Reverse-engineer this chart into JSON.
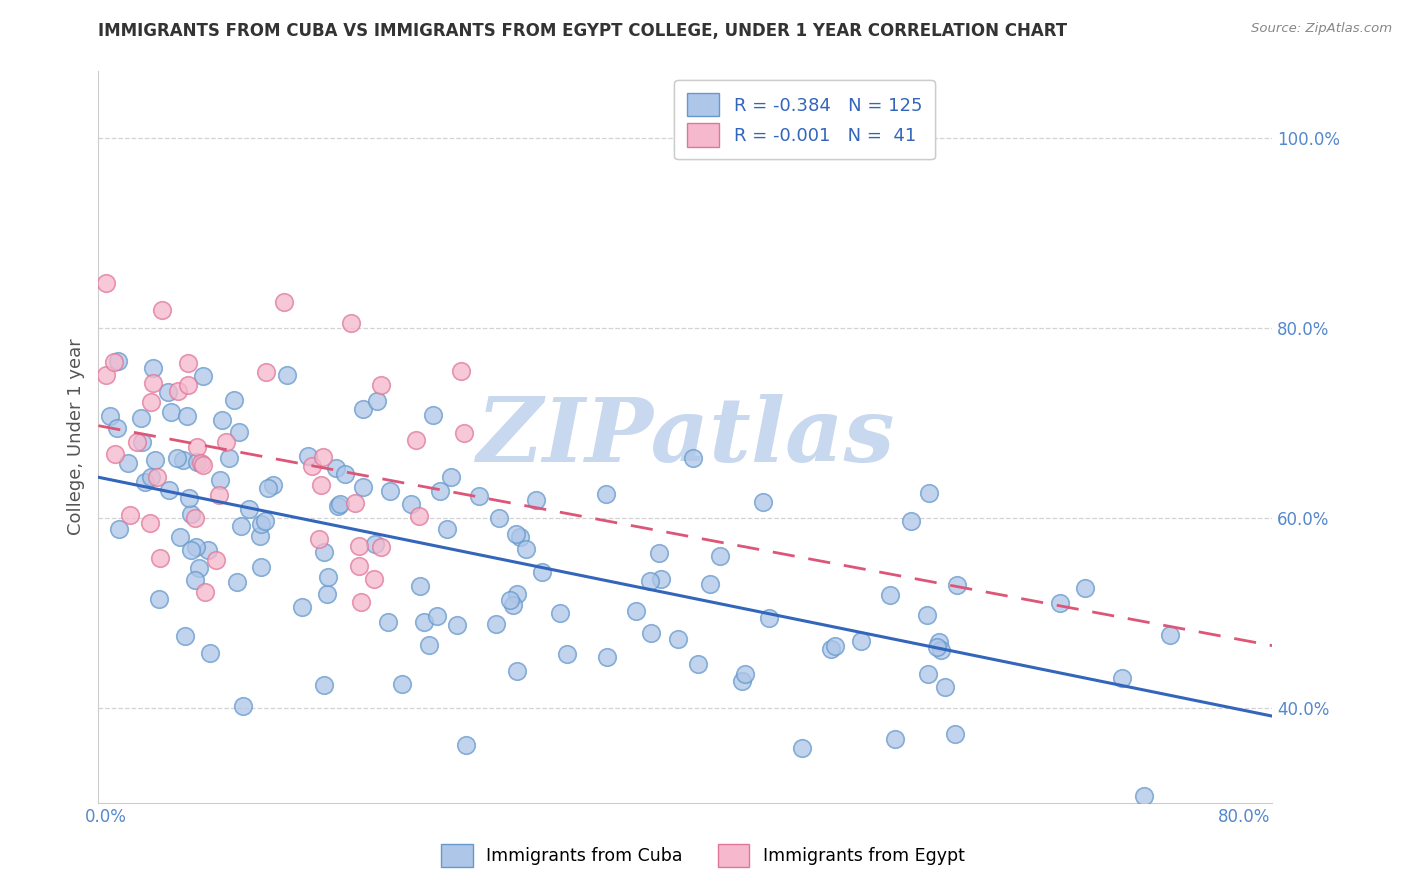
{
  "title": "IMMIGRANTS FROM CUBA VS IMMIGRANTS FROM EGYPT COLLEGE, UNDER 1 YEAR CORRELATION CHART",
  "source": "Source: ZipAtlas.com",
  "ylabel": "College, Under 1 year",
  "xlabel_cuba": "Immigrants from Cuba",
  "xlabel_egypt": "Immigrants from Egypt",
  "watermark": "ZIPatlas",
  "xlim": [
    -0.005,
    0.82
  ],
  "ylim": [
    0.3,
    1.07
  ],
  "xtick_positions": [
    0.0,
    0.1,
    0.2,
    0.3,
    0.4,
    0.5,
    0.6,
    0.7,
    0.8
  ],
  "xtick_labels": [
    "0.0%",
    "",
    "",
    "",
    "",
    "",
    "",
    "",
    "80.0%"
  ],
  "ytick_positions": [
    0.4,
    0.6,
    0.8,
    1.0
  ],
  "ytick_labels": [
    "40.0%",
    "60.0%",
    "80.0%",
    "100.0%"
  ],
  "cuba_R": -0.384,
  "cuba_N": 125,
  "egypt_R": -0.001,
  "egypt_N": 41,
  "cuba_face_color": "#aec6e8",
  "egypt_face_color": "#f5b8cc",
  "cuba_edge_color": "#6699cc",
  "egypt_edge_color": "#e07799",
  "cuba_line_color": "#3366bb",
  "egypt_line_color": "#dd5577",
  "grid_color": "#cccccc",
  "bg_color": "#ffffff",
  "title_color": "#333333",
  "axis_label_color": "#555555",
  "tick_color": "#5588cc",
  "source_color": "#888888",
  "watermark_color": "#c8d8ee",
  "legend_text_color": "#3366bb"
}
